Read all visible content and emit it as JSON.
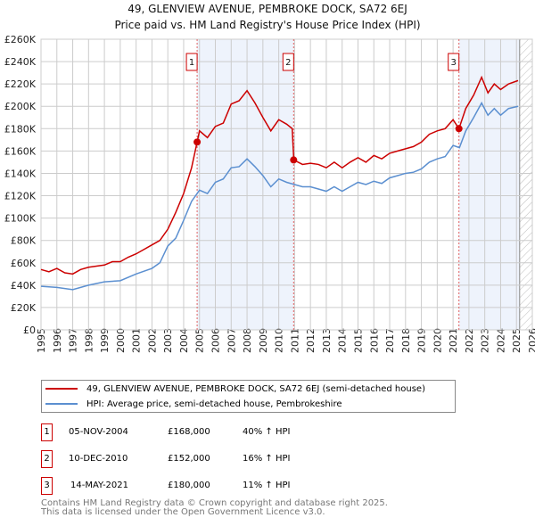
{
  "chart_data": {
    "type": "line",
    "title": "49, GLENVIEW AVENUE, PEMBROKE DOCK, SA72 6EJ",
    "subtitle": "Price paid vs. HM Land Registry's House Price Index (HPI)",
    "xlim": [
      1995,
      2026
    ],
    "ylim": [
      0,
      260000
    ],
    "x_ticks": [
      "1995",
      "1996",
      "1997",
      "1998",
      "1999",
      "2000",
      "2001",
      "2002",
      "2003",
      "2004",
      "2005",
      "2006",
      "2007",
      "2008",
      "2009",
      "2010",
      "2011",
      "2012",
      "2013",
      "2014",
      "2015",
      "2016",
      "2017",
      "2018",
      "2019",
      "2020",
      "2021",
      "2022",
      "2023",
      "2024",
      "2025",
      "2026"
    ],
    "y_ticks": [
      "£0",
      "£20K",
      "£40K",
      "£60K",
      "£80K",
      "£100K",
      "£120K",
      "£140K",
      "£160K",
      "£180K",
      "£200K",
      "£220K",
      "£240K",
      "£260K"
    ],
    "grid": true,
    "series": [
      {
        "name": "49, GLENVIEW AVENUE, PEMBROKE DOCK, SA72 6EJ (semi-detached house)",
        "color": "#cc0000",
        "x": [
          1995,
          1995.5,
          1996,
          1996.5,
          1997,
          1997.5,
          1998,
          1998.5,
          1999,
          1999.5,
          2000,
          2000.5,
          2001,
          2001.5,
          2002,
          2002.5,
          2003,
          2003.5,
          2004,
          2004.5,
          2004.85,
          2005,
          2005.5,
          2006,
          2006.5,
          2007,
          2007.5,
          2008,
          2008.5,
          2009,
          2009.5,
          2010,
          2010.5,
          2010.85,
          2010.95,
          2011.5,
          2012,
          2012.5,
          2013,
          2013.5,
          2014,
          2014.5,
          2015,
          2015.5,
          2016,
          2016.5,
          2017,
          2017.5,
          2018,
          2018.5,
          2019,
          2019.5,
          2020,
          2020.5,
          2021,
          2021.37,
          2021.8,
          2022.3,
          2022.8,
          2023.2,
          2023.6,
          2024,
          2024.5,
          2025.1
        ],
        "y": [
          54000,
          52000,
          55000,
          51000,
          50000,
          54000,
          56000,
          57000,
          58000,
          61000,
          61000,
          65000,
          68000,
          72000,
          76000,
          80000,
          90000,
          105000,
          122000,
          145000,
          168000,
          178000,
          172000,
          182000,
          185000,
          202000,
          205000,
          214000,
          203000,
          190000,
          178000,
          188000,
          184000,
          180000,
          152000,
          148000,
          149000,
          148000,
          145000,
          150000,
          145000,
          150000,
          154000,
          150000,
          156000,
          153000,
          158000,
          160000,
          162000,
          164000,
          168000,
          175000,
          178000,
          180000,
          188000,
          180000,
          198000,
          210000,
          226000,
          212000,
          220000,
          215000,
          220000,
          223000
        ]
      },
      {
        "name": "HPI: Average price, semi-detached house, Pembrokeshire",
        "color": "#5b8fd0",
        "x": [
          1995,
          1996,
          1997,
          1998,
          1999,
          2000,
          2001,
          2002,
          2002.5,
          2003,
          2003.5,
          2004,
          2004.5,
          2005,
          2005.5,
          2006,
          2006.5,
          2007,
          2007.5,
          2008,
          2008.5,
          2009,
          2009.5,
          2010,
          2010.5,
          2011,
          2011.5,
          2012,
          2012.5,
          2013,
          2013.5,
          2014,
          2014.5,
          2015,
          2015.5,
          2016,
          2016.5,
          2017,
          2017.5,
          2018,
          2018.5,
          2019,
          2019.5,
          2020,
          2020.5,
          2021,
          2021.4,
          2021.8,
          2022.3,
          2022.8,
          2023.2,
          2023.6,
          2024,
          2024.5,
          2025.1
        ],
        "y": [
          39000,
          38000,
          36000,
          40000,
          43000,
          44000,
          50000,
          55000,
          60000,
          75000,
          82000,
          98000,
          115000,
          125000,
          122000,
          132000,
          135000,
          145000,
          146000,
          153000,
          146000,
          138000,
          128000,
          135000,
          132000,
          130000,
          128000,
          128000,
          126000,
          124000,
          128000,
          124000,
          128000,
          132000,
          130000,
          133000,
          131000,
          136000,
          138000,
          140000,
          141000,
          144000,
          150000,
          153000,
          155000,
          165000,
          163000,
          178000,
          190000,
          203000,
          192000,
          198000,
          192000,
          198000,
          200000
        ]
      }
    ],
    "sales": [
      {
        "label": "1",
        "x": 2004.85,
        "y": 168000,
        "date": "05-NOV-2004",
        "price": "£168,000",
        "hpi": "40% ↑ HPI"
      },
      {
        "label": "2",
        "x": 2010.94,
        "y": 152000,
        "date": "10-DEC-2010",
        "price": "£152,000",
        "hpi": "16% ↑ HPI"
      },
      {
        "label": "3",
        "x": 2021.37,
        "y": 180000,
        "date": "14-MAY-2021",
        "price": "£180,000",
        "hpi": "11% ↑ HPI"
      }
    ],
    "shaded_periods": [
      [
        2004.85,
        2010.94
      ],
      [
        2021.37,
        2025.2
      ]
    ],
    "forecast_hatch_from": 2025.2
  },
  "footer": [
    "Contains HM Land Registry data © Crown copyright and database right 2025.",
    "This data is licensed under the Open Government Licence v3.0."
  ]
}
